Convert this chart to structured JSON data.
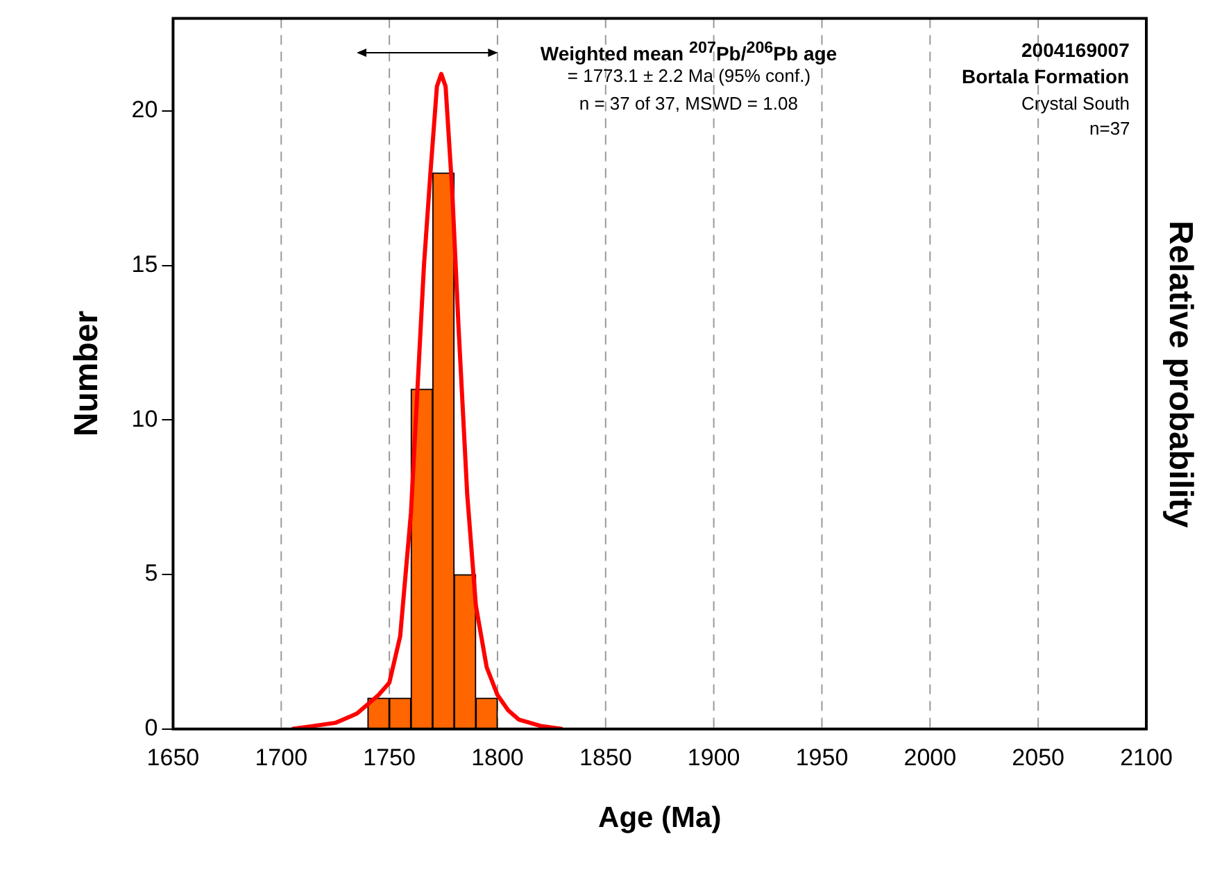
{
  "chart_data": {
    "type": "histogram",
    "xlabel": "Age (Ma)",
    "ylabel": "Number",
    "y2label": "Relative probability",
    "bins": [
      1740,
      1750,
      1760,
      1770,
      1780,
      1790,
      1800
    ],
    "values": [
      1,
      1,
      11,
      18,
      5,
      1
    ],
    "color": "#ff6600",
    "series": [
      {
        "type": "line",
        "color": "#ff0000",
        "marker": "none",
        "x": [
          1705,
          1715,
          1725,
          1735,
          1740,
          1745,
          1750,
          1755,
          1760,
          1763,
          1766,
          1769,
          1772,
          1774,
          1776,
          1779,
          1782,
          1786,
          1790,
          1795,
          1800,
          1805,
          1810,
          1820,
          1830
        ],
        "values": [
          0,
          0.1,
          0.2,
          0.5,
          0.8,
          1.1,
          1.5,
          3,
          7,
          11,
          15,
          18,
          20.8,
          21.2,
          20.8,
          17.5,
          13,
          7.6,
          4,
          2,
          1.1,
          0.6,
          0.3,
          0.1,
          0
        ]
      }
    ],
    "xlim": [
      1650,
      2100
    ],
    "xticks": [
      1650,
      1700,
      1750,
      1800,
      1850,
      1900,
      1950,
      2000,
      2050,
      2100
    ],
    "ylim": [
      0,
      23
    ],
    "yticks": [
      0,
      5,
      10,
      15,
      20
    ],
    "grid": "x",
    "annotations": [
      "Weighted mean $^{207}$Pb/$^{206}$Pb age",
      "= 1773.1 ± 2.2 Ma (95% conf.)",
      "n = 37 of 37, MSWD =  1.08",
      "2004169007",
      "Bortala Formation",
      "Crystal South",
      "n=37"
    ]
  }
}
